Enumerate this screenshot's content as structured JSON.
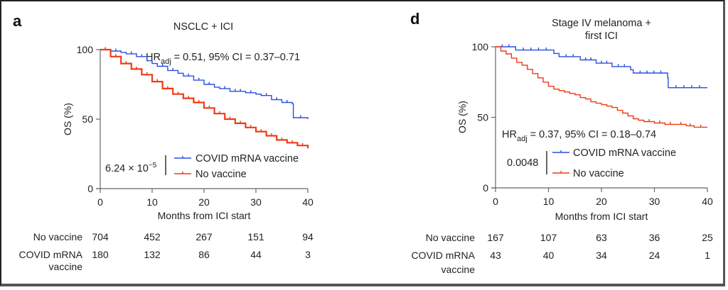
{
  "figure": {
    "panels": [
      "a",
      "d"
    ]
  },
  "chart_data": [
    {
      "type": "line",
      "panel_letter": "a",
      "title": "NSCLC + ICI",
      "xlabel": "Months from ICI start",
      "ylabel": "OS (%)",
      "xlim": [
        0,
        40
      ],
      "ylim": [
        0,
        100
      ],
      "xticks": [
        0,
        10,
        20,
        30,
        40
      ],
      "yticks": [
        0,
        50,
        100
      ],
      "grid": false,
      "hr_text_main": "HR",
      "hr_text_sub": "adj",
      "hr_text_rest": " = 0.51, 95% CI = 0.37–0.71",
      "p_value_base": "6.24 × 10",
      "p_value_exp": "−5",
      "legend_placement": "bottom-center",
      "series": [
        {
          "name": "COVID mRNA vaccine",
          "color": "#2a4fe0",
          "x": [
            0,
            2,
            4,
            5,
            7,
            9,
            10,
            11,
            13,
            15,
            16,
            18,
            20,
            22,
            23,
            25,
            28,
            30,
            31,
            33,
            35,
            37,
            37.2,
            40
          ],
          "y": [
            100,
            99,
            98,
            97,
            95,
            92,
            90,
            88,
            85,
            83,
            81,
            78,
            75,
            73,
            72,
            70,
            69,
            68,
            67,
            64,
            62,
            61,
            51,
            50
          ]
        },
        {
          "name": "No vaccine",
          "color": "#f03a17",
          "x": [
            0,
            2,
            4,
            6,
            8,
            10,
            12,
            14,
            16,
            18,
            20,
            22,
            24,
            26,
            28,
            30,
            32,
            34,
            36,
            38,
            40
          ],
          "y": [
            100,
            95,
            90,
            86,
            82,
            77,
            72,
            68,
            65,
            62,
            58,
            54,
            50,
            47,
            44,
            41,
            38,
            35,
            33,
            31,
            29
          ]
        }
      ],
      "risk_table": {
        "times": [
          0,
          10,
          20,
          30,
          40
        ],
        "rows": [
          {
            "label": "No vaccine",
            "label2": "",
            "values": [
              704,
              452,
              267,
              151,
              94
            ]
          },
          {
            "label": "COVID mRNA",
            "label2": "vaccine",
            "values": [
              180,
              132,
              86,
              44,
              3
            ]
          }
        ]
      }
    },
    {
      "type": "line",
      "panel_letter": "d",
      "title": "Stage IV melanoma +",
      "title_line2": "first ICI",
      "xlabel": "Months from ICI start",
      "ylabel": "OS (%)",
      "xlim": [
        0,
        40
      ],
      "ylim": [
        0,
        100
      ],
      "xticks": [
        0,
        10,
        20,
        30,
        40
      ],
      "yticks": [
        0,
        50,
        100
      ],
      "grid": false,
      "hr_text_main": "HR",
      "hr_text_sub": "adj",
      "hr_text_rest": " = 0.37, 95% CI = 0.18–0.74",
      "p_value_base": "0.0048",
      "p_value_exp": "",
      "legend_placement": "bottom-center",
      "series": [
        {
          "name": "COVID mRNA vaccine",
          "color": "#2a4fe0",
          "x": [
            0,
            3.8,
            11,
            12,
            16,
            19,
            22,
            25.5,
            26.5,
            32.5,
            40
          ],
          "y": [
            100,
            97.7,
            95.3,
            93,
            90.7,
            88.4,
            86,
            81.4,
            76.7,
            71,
            71
          ],
          "steps": [
            [
              0,
              100
            ],
            [
              3.8,
              100
            ],
            [
              3.8,
              97.7
            ],
            [
              11,
              97.7
            ],
            [
              11,
              95.3
            ],
            [
              12,
              95.3
            ],
            [
              12,
              93
            ],
            [
              16,
              93
            ],
            [
              16,
              90.7
            ],
            [
              19,
              90.7
            ],
            [
              19,
              88.4
            ],
            [
              22,
              88.4
            ],
            [
              22,
              86
            ],
            [
              25.5,
              86
            ],
            [
              25.5,
              83.7
            ],
            [
              26,
              83.7
            ],
            [
              26,
              81.4
            ],
            [
              32.5,
              81.4
            ],
            [
              32.5,
              78
            ],
            [
              32.6,
              78
            ],
            [
              32.6,
              71
            ],
            [
              40,
              71
            ]
          ]
        },
        {
          "name": "No vaccine",
          "color": "#f03a17",
          "x": [
            0,
            1,
            2,
            3,
            4,
            5,
            6,
            7,
            8,
            9,
            10,
            11,
            12,
            13,
            14,
            15,
            16,
            17,
            18,
            19,
            20,
            21,
            22,
            23,
            24,
            25,
            26,
            27,
            28,
            30,
            32,
            34,
            36,
            37.5,
            40
          ],
          "y": [
            100,
            97,
            95,
            92,
            89,
            87,
            84,
            81,
            78,
            75,
            72,
            70,
            69,
            68,
            67,
            66,
            64,
            63,
            61,
            60,
            59,
            58,
            57,
            55,
            53,
            51,
            49,
            48,
            47,
            46,
            45,
            45,
            44,
            43,
            43
          ]
        }
      ],
      "risk_table": {
        "times": [
          0,
          10,
          20,
          30,
          40
        ],
        "rows": [
          {
            "label": "No vaccine",
            "label2": "",
            "values": [
              167,
              107,
              63,
              36,
              25
            ]
          },
          {
            "label": "COVID mRNA",
            "label2": "vaccine",
            "values": [
              43,
              40,
              34,
              24,
              1
            ]
          }
        ]
      }
    }
  ]
}
